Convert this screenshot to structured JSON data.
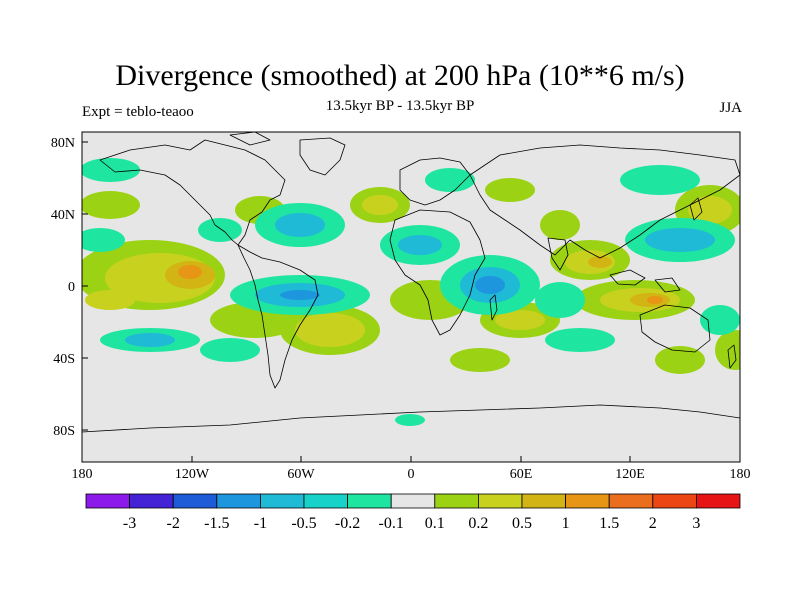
{
  "map": {
    "title": "Divergence (smoothed) at 200 hPa (10**6 m/s)",
    "subtitle": "13.5kyr BP - 13.5kyr BP",
    "left_label": "Expt = teblo-teaoo",
    "right_label": "JJA",
    "lat_ticks": [
      "80N",
      "40N",
      "0",
      "40S",
      "80S"
    ],
    "lon_ticks": [
      "180",
      "120W",
      "60W",
      "0",
      "60E",
      "120E",
      "180"
    ],
    "background_color": "#e6e6e6",
    "coastline_color": "#000000"
  },
  "colorbar": {
    "colors": [
      "#8c1aeb",
      "#4422d6",
      "#1e5bd6",
      "#1e96dd",
      "#1ebad6",
      "#17d2c8",
      "#1ee6a0",
      "#e6e6e6",
      "#9bd214",
      "#c8d21e",
      "#d2b414",
      "#e69614",
      "#eb6e1e",
      "#eb4614",
      "#e61414"
    ],
    "labels": [
      "-3",
      "-2",
      "-1.5",
      "-1",
      "-0.5",
      "-0.2",
      "-0.1",
      "0.1",
      "0.2",
      "0.5",
      "1",
      "1.5",
      "2",
      "3"
    ]
  }
}
